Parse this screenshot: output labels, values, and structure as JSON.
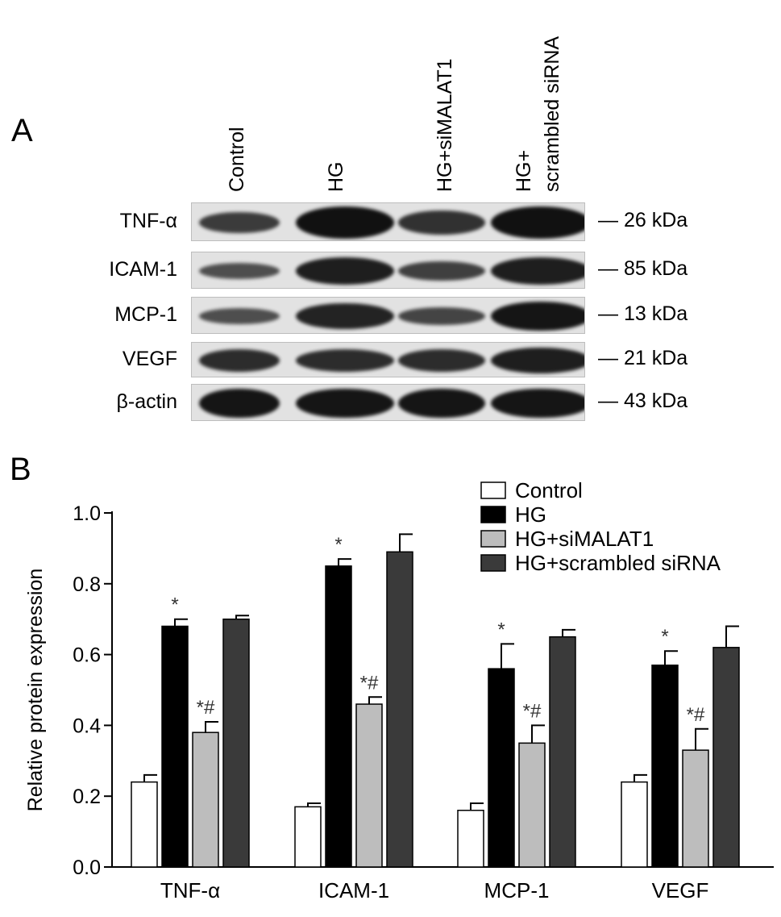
{
  "panel_a": {
    "letter": "A",
    "lanes": [
      "Control",
      "HG",
      "HG+siMALAT1",
      "HG+",
      "scrambled siRNA"
    ],
    "rows": [
      {
        "label": "TNF-α",
        "mw": "26 kDa",
        "intensity": [
          0.55,
          1.0,
          0.65,
          1.0
        ]
      },
      {
        "label": "ICAM-1",
        "mw": "85 kDa",
        "intensity": [
          0.35,
          0.85,
          0.5,
          0.85
        ]
      },
      {
        "label": "MCP-1",
        "mw": "13 kDa",
        "intensity": [
          0.35,
          0.8,
          0.45,
          0.95
        ]
      },
      {
        "label": "VEGF",
        "mw": "21 kDa",
        "intensity": [
          0.7,
          0.7,
          0.7,
          0.85
        ]
      },
      {
        "label": "β-actin",
        "mw": "43 kDa",
        "intensity": [
          0.95,
          0.95,
          0.95,
          0.95
        ]
      }
    ]
  },
  "panel_b": {
    "letter": "B"
  },
  "chart_data": {
    "type": "bar",
    "categories": [
      "TNF-α",
      "ICAM-1",
      "MCP-1",
      "VEGF"
    ],
    "ylabel": "Relative protein expression",
    "ylim": [
      0,
      1.0
    ],
    "yticks": [
      "0.0",
      "0.2",
      "0.4",
      "0.6",
      "0.8",
      "1.0"
    ],
    "grid": false,
    "legend_position": "top-right",
    "series": [
      {
        "name": "Control",
        "color": "#ffffff",
        "values": [
          0.24,
          0.17,
          0.16,
          0.24
        ],
        "errors": [
          0.02,
          0.01,
          0.02,
          0.02
        ],
        "annotations": [
          "",
          "",
          "",
          ""
        ]
      },
      {
        "name": "HG",
        "color": "#000000",
        "values": [
          0.68,
          0.85,
          0.56,
          0.57
        ],
        "errors": [
          0.02,
          0.02,
          0.07,
          0.04
        ],
        "annotations": [
          "*",
          "*",
          "*",
          "*"
        ]
      },
      {
        "name": "HG+siMALAT1",
        "color": "#bdbdbd",
        "values": [
          0.38,
          0.46,
          0.35,
          0.33
        ],
        "errors": [
          0.03,
          0.02,
          0.05,
          0.06
        ],
        "annotations": [
          "*#",
          "*#",
          "*#",
          "*#"
        ]
      },
      {
        "name": "HG+scrambled siRNA",
        "color": "#3a3a3a",
        "values": [
          0.7,
          0.89,
          0.65,
          0.62
        ],
        "errors": [
          0.01,
          0.05,
          0.02,
          0.06
        ],
        "annotations": [
          "",
          "",
          "",
          ""
        ]
      }
    ]
  }
}
